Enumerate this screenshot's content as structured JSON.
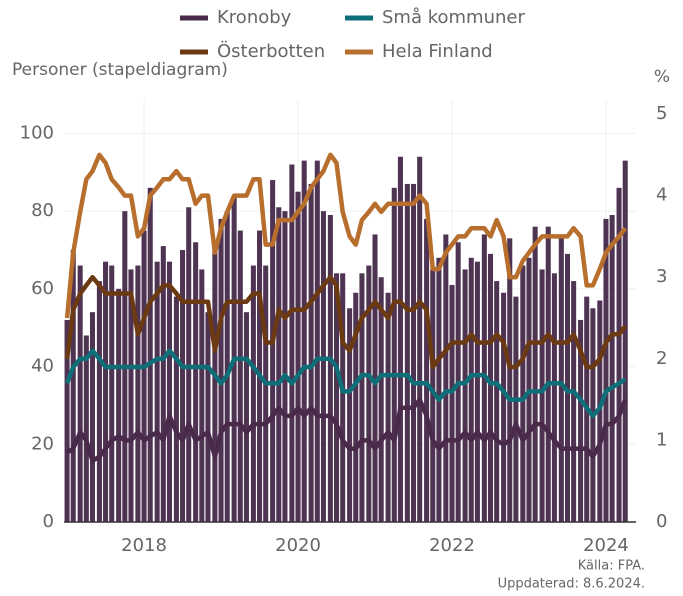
{
  "chart_data": {
    "type": "bar",
    "axis_label_left": "Personer (stapeldiagram)",
    "axis_label_right": "%",
    "source": "Källa: FPA.",
    "updated": "Uppdaterad: 8.6.2024.",
    "color": "#4e3352",
    "x": [
      2017.0,
      2017.08,
      2017.17,
      2017.25,
      2017.33,
      2017.42,
      2017.5,
      2017.58,
      2017.67,
      2017.75,
      2017.83,
      2017.92,
      2018.0,
      2018.08,
      2018.17,
      2018.25,
      2018.33,
      2018.42,
      2018.5,
      2018.58,
      2018.67,
      2018.75,
      2018.83,
      2018.92,
      2019.0,
      2019.08,
      2019.17,
      2019.25,
      2019.33,
      2019.42,
      2019.5,
      2019.58,
      2019.67,
      2019.75,
      2019.83,
      2019.92,
      2020.0,
      2020.08,
      2020.17,
      2020.25,
      2020.33,
      2020.42,
      2020.5,
      2020.58,
      2020.67,
      2020.75,
      2020.83,
      2020.92,
      2021.0,
      2021.08,
      2021.17,
      2021.25,
      2021.33,
      2021.42,
      2021.5,
      2021.58,
      2021.67,
      2021.75,
      2021.83,
      2021.92,
      2022.0,
      2022.08,
      2022.17,
      2022.25,
      2022.33,
      2022.42,
      2022.5,
      2022.58,
      2022.67,
      2022.75,
      2022.83,
      2022.92,
      2023.0,
      2023.08,
      2023.17,
      2023.25,
      2023.33,
      2023.42,
      2023.5,
      2023.58,
      2023.67,
      2023.75,
      2023.83,
      2023.92,
      2024.0,
      2024.08,
      2024.17,
      2024.25
    ],
    "values": [
      52,
      70,
      66,
      48,
      54,
      62,
      67,
      66,
      60,
      80,
      65,
      66,
      75,
      86,
      67,
      71,
      67,
      58,
      70,
      81,
      72,
      65,
      54,
      72,
      78,
      80,
      84,
      75,
      54,
      66,
      75,
      66,
      88,
      81,
      80,
      92,
      85,
      93,
      87,
      93,
      80,
      79,
      64,
      64,
      55,
      59,
      64,
      66,
      74,
      63,
      59,
      86,
      94,
      87,
      87,
      94,
      78,
      65,
      68,
      74,
      61,
      72,
      65,
      68,
      67,
      74,
      69,
      62,
      59,
      73,
      58,
      66,
      68,
      76,
      65,
      76,
      64,
      73,
      69,
      62,
      52,
      58,
      55,
      57,
      78,
      79,
      86,
      93
    ],
    "series": [
      {
        "name": "Kronoby",
        "color": "#4a2a4a",
        "axis": "y2",
        "values": [
          0.85,
          0.9,
          1.1,
          1.0,
          0.75,
          0.8,
          0.9,
          1.0,
          1.05,
          1.0,
          1.0,
          1.1,
          1.0,
          1.05,
          1.1,
          1.0,
          1.3,
          1.1,
          1.0,
          1.2,
          1.0,
          1.05,
          1.1,
          0.8,
          1.1,
          1.2,
          1.2,
          1.2,
          1.1,
          1.2,
          1.2,
          1.2,
          1.3,
          1.4,
          1.3,
          1.3,
          1.4,
          1.3,
          1.4,
          1.3,
          1.3,
          1.3,
          1.2,
          1.0,
          0.9,
          0.9,
          1.0,
          1.0,
          0.9,
          1.0,
          1.1,
          1.0,
          1.4,
          1.4,
          1.4,
          1.5,
          1.3,
          1.0,
          0.9,
          1.0,
          1.0,
          1.0,
          1.1,
          1.0,
          1.1,
          1.0,
          1.1,
          1.0,
          0.95,
          1.0,
          1.2,
          1.0,
          1.1,
          1.2,
          1.2,
          1.1,
          1.0,
          0.9,
          0.9,
          0.9,
          0.9,
          0.9,
          0.8,
          0.95,
          1.2,
          1.2,
          1.3,
          1.5
        ]
      },
      {
        "name": "Små kommuner",
        "color": "#0e6f78",
        "axis": "y2",
        "values": [
          1.7,
          1.9,
          2.0,
          2.0,
          2.1,
          2.0,
          1.9,
          1.9,
          1.9,
          1.9,
          1.9,
          1.9,
          1.9,
          1.95,
          2.0,
          2.0,
          2.1,
          2.0,
          1.9,
          1.9,
          1.9,
          1.9,
          1.9,
          1.8,
          1.7,
          1.8,
          2.0,
          2.0,
          2.0,
          1.9,
          1.8,
          1.7,
          1.7,
          1.7,
          1.8,
          1.7,
          1.8,
          1.9,
          1.9,
          2.0,
          2.0,
          2.0,
          1.9,
          1.6,
          1.6,
          1.7,
          1.8,
          1.8,
          1.7,
          1.8,
          1.8,
          1.8,
          1.8,
          1.8,
          1.7,
          1.7,
          1.7,
          1.6,
          1.5,
          1.6,
          1.6,
          1.7,
          1.7,
          1.8,
          1.8,
          1.8,
          1.7,
          1.7,
          1.6,
          1.5,
          1.5,
          1.5,
          1.6,
          1.6,
          1.6,
          1.7,
          1.7,
          1.7,
          1.6,
          1.6,
          1.5,
          1.4,
          1.3,
          1.4,
          1.6,
          1.65,
          1.7,
          1.75
        ]
      },
      {
        "name": "Österbotten",
        "color": "#6b3a12",
        "axis": "y2",
        "values": [
          2.0,
          2.6,
          2.8,
          2.9,
          3.0,
          2.9,
          2.8,
          2.8,
          2.8,
          2.8,
          2.8,
          2.3,
          2.5,
          2.7,
          2.8,
          2.9,
          2.9,
          2.8,
          2.7,
          2.7,
          2.7,
          2.7,
          2.7,
          2.1,
          2.5,
          2.7,
          2.7,
          2.7,
          2.7,
          2.8,
          2.8,
          2.2,
          2.2,
          2.6,
          2.5,
          2.6,
          2.6,
          2.6,
          2.7,
          2.8,
          2.9,
          3.0,
          2.9,
          2.2,
          2.1,
          2.3,
          2.5,
          2.6,
          2.7,
          2.6,
          2.5,
          2.7,
          2.7,
          2.6,
          2.6,
          2.7,
          2.6,
          1.9,
          2.0,
          2.1,
          2.2,
          2.2,
          2.2,
          2.3,
          2.2,
          2.2,
          2.2,
          2.3,
          2.2,
          1.9,
          1.9,
          2.0,
          2.2,
          2.2,
          2.2,
          2.3,
          2.2,
          2.2,
          2.2,
          2.3,
          2.1,
          1.9,
          1.9,
          2.0,
          2.2,
          2.3,
          2.3,
          2.4
        ]
      },
      {
        "name": "Hela Finland",
        "color": "#b86e2c",
        "axis": "y2",
        "values": [
          2.5,
          3.3,
          3.8,
          4.2,
          4.3,
          4.5,
          4.4,
          4.2,
          4.1,
          4.0,
          4.0,
          3.5,
          3.6,
          4.0,
          4.1,
          4.2,
          4.2,
          4.3,
          4.2,
          4.2,
          3.9,
          4.0,
          4.0,
          3.3,
          3.6,
          3.8,
          4.0,
          4.0,
          4.0,
          4.2,
          4.2,
          3.4,
          3.4,
          3.7,
          3.7,
          3.7,
          3.8,
          3.9,
          4.1,
          4.2,
          4.3,
          4.5,
          4.4,
          3.8,
          3.5,
          3.4,
          3.7,
          3.8,
          3.9,
          3.8,
          3.9,
          3.9,
          3.9,
          3.9,
          3.9,
          4.0,
          3.9,
          3.1,
          3.1,
          3.3,
          3.4,
          3.5,
          3.5,
          3.6,
          3.6,
          3.6,
          3.5,
          3.7,
          3.5,
          3.0,
          3.0,
          3.2,
          3.3,
          3.4,
          3.5,
          3.5,
          3.5,
          3.5,
          3.5,
          3.6,
          3.5,
          2.9,
          2.9,
          3.1,
          3.3,
          3.4,
          3.5,
          3.6
        ]
      }
    ],
    "xlim": [
      2016.96,
      2024.39
    ],
    "xticks": [
      2018,
      2020,
      2022,
      2024
    ],
    "ylim": [
      0,
      105
    ],
    "yticks": [
      0,
      20,
      40,
      60,
      80,
      100
    ],
    "y2lim": [
      0,
      5
    ],
    "y2ticks": [
      0,
      1,
      2,
      3,
      4,
      5
    ],
    "grid": true
  }
}
